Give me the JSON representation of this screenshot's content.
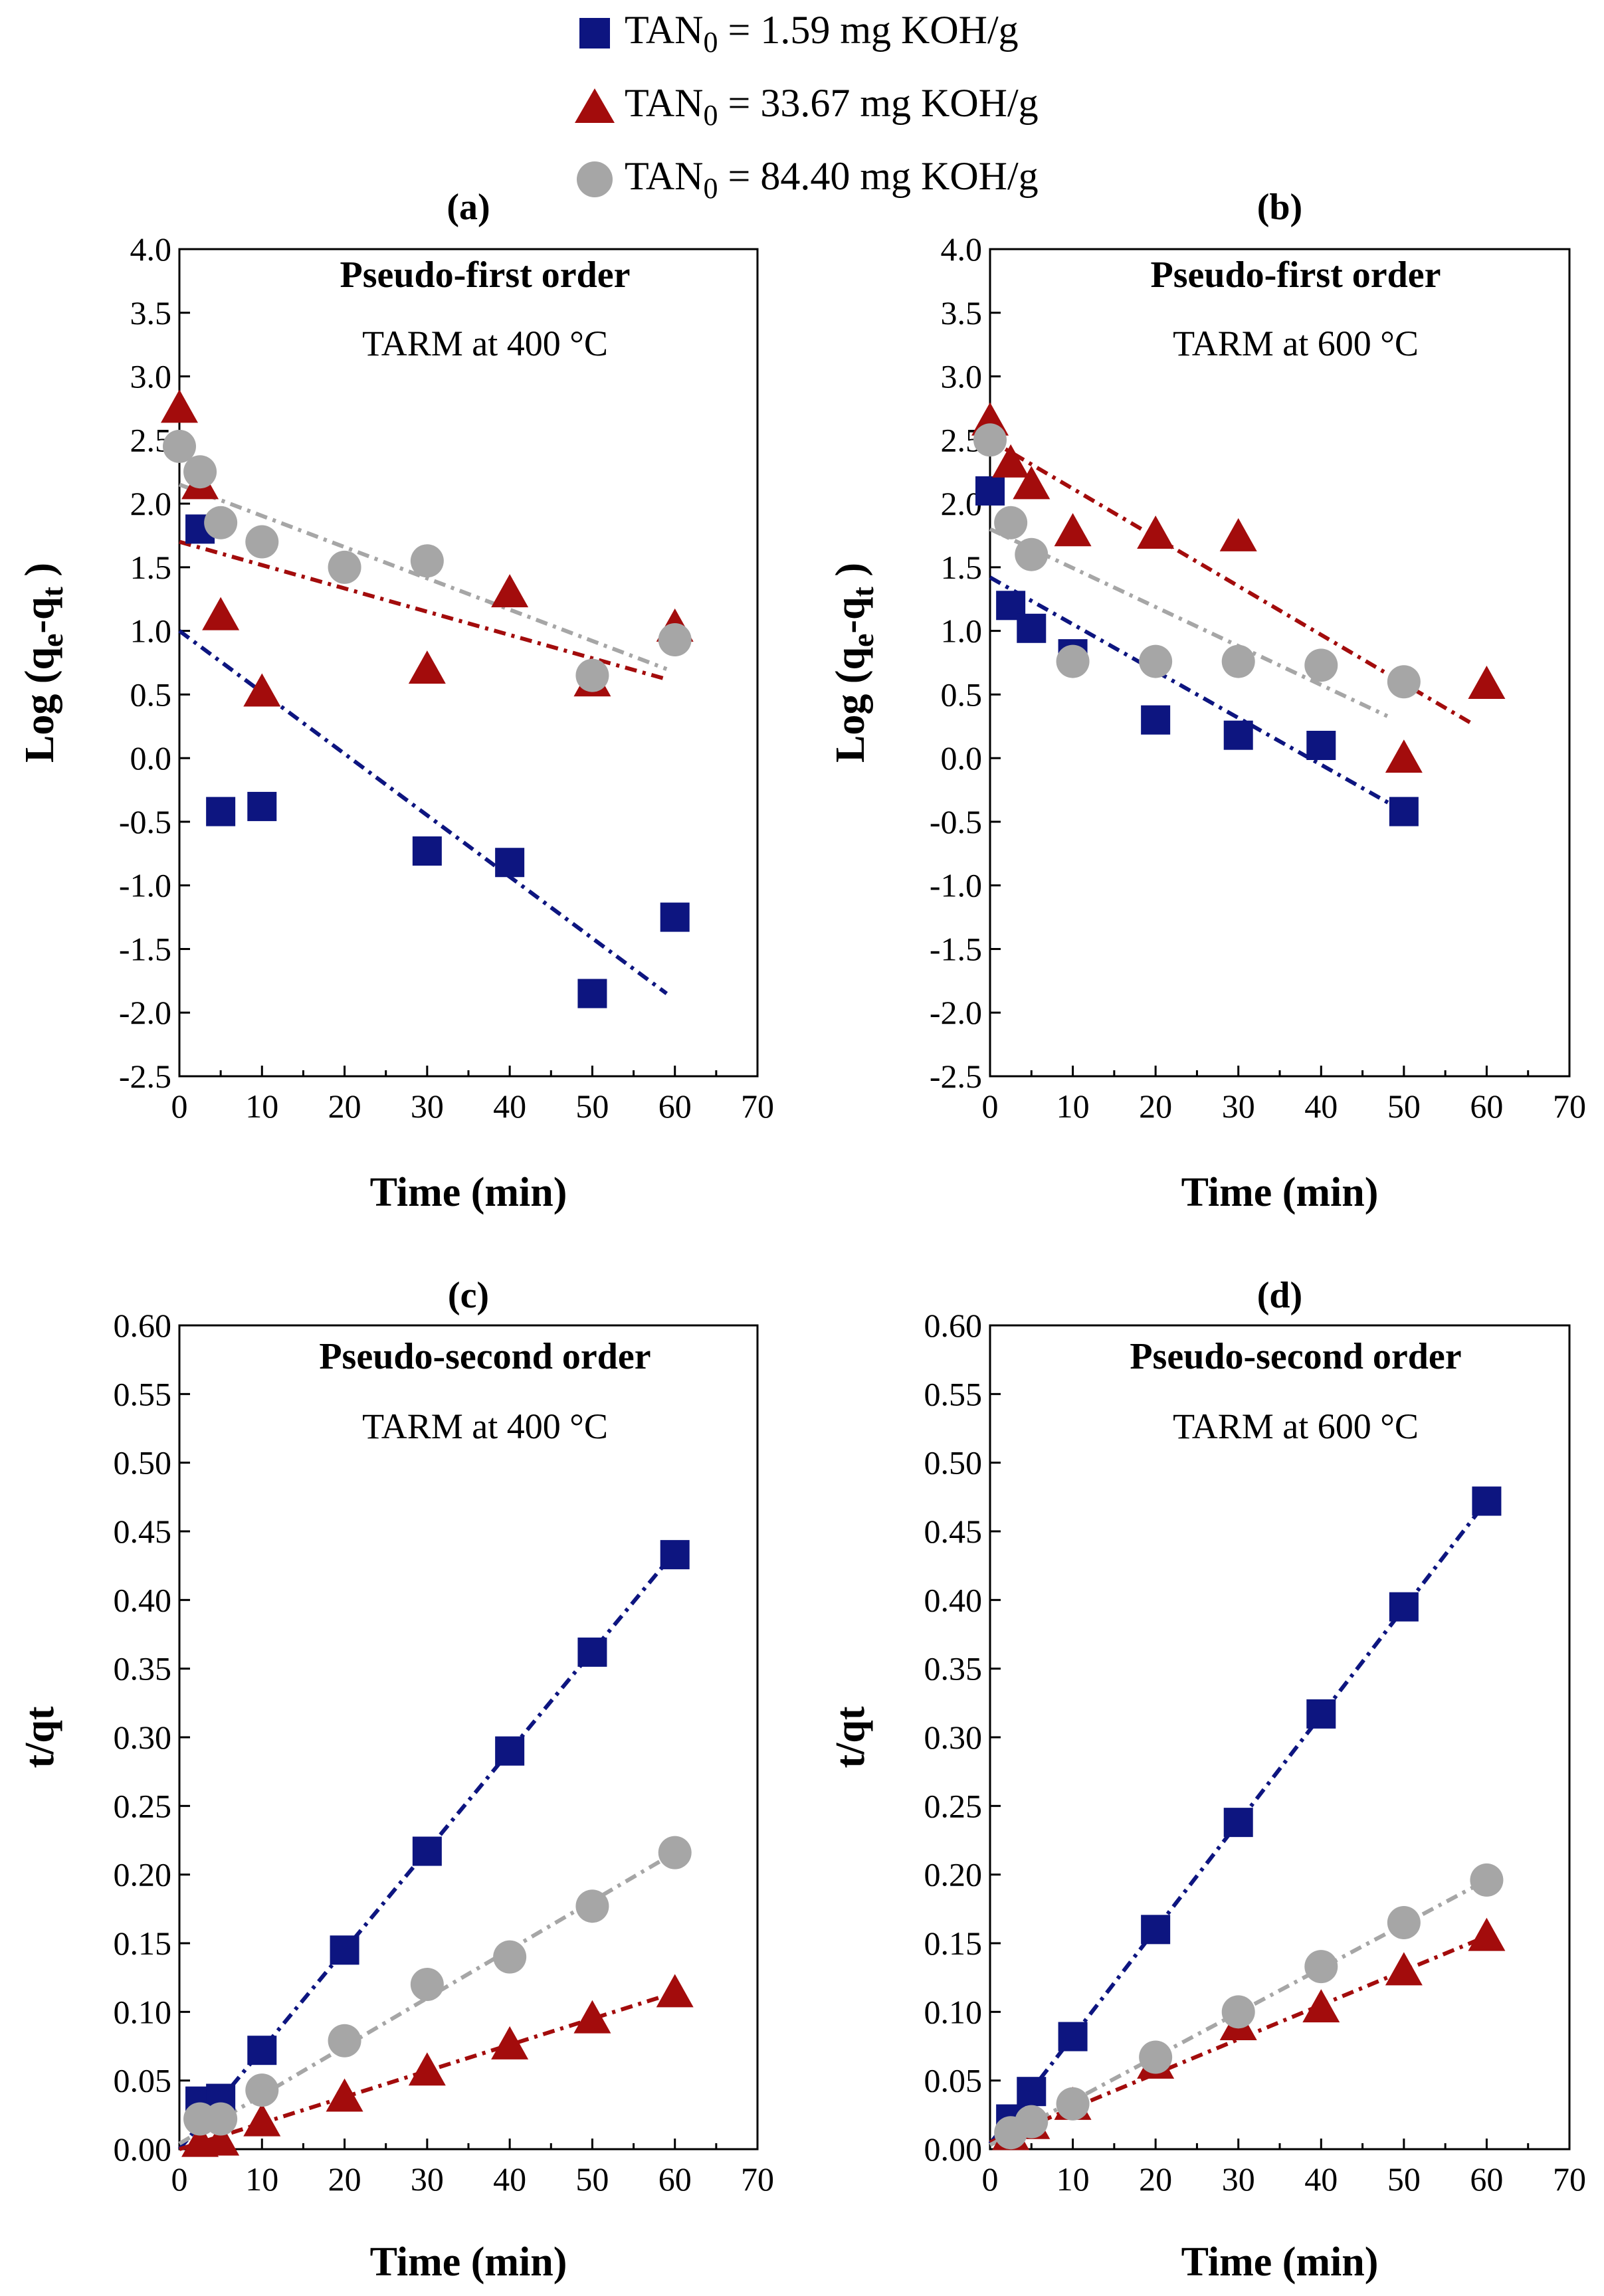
{
  "legend": {
    "entries": [
      {
        "name": "TAN0 = 1.59 mg KOH/g",
        "prefix": "TAN",
        "sub": "0",
        "suffix": " = 1.59 mg KOH/g",
        "marker": "square",
        "color": "#0d1580"
      },
      {
        "name": "TAN0 = 33.67 mg KOH/g",
        "prefix": "TAN",
        "sub": "0",
        "suffix": " = 33.67 mg KOH/g",
        "marker": "triangle",
        "color": "#a30c0c"
      },
      {
        "name": "TAN0 = 84.40 mg KOH/g",
        "prefix": "TAN",
        "sub": "0",
        "suffix": " = 84.40 mg KOH/g",
        "marker": "circle",
        "color": "#a6a6a6"
      }
    ]
  },
  "chart_data": [
    {
      "panel": "(a)",
      "type": "scatter",
      "title": "Pseudo-first order",
      "subtitle": "TARM at 400 °C",
      "xlabel": "Time (min)",
      "ylabel": "Log (q",
      "ylabel_sub1": "e",
      "ylabel_mid": "-q",
      "ylabel_sub2": "t",
      "ylabel_end": " )",
      "xlim": [
        0,
        70
      ],
      "ylim": [
        -2.5,
        4.0
      ],
      "xticks": [
        "0",
        "10",
        "20",
        "30",
        "40",
        "50",
        "60",
        "70"
      ],
      "yticks": [
        "-2.5",
        "-2.0",
        "-1.5",
        "-1.0",
        "-0.5",
        "0.0",
        "0.5",
        "1.0",
        "1.5",
        "2.0",
        "2.5",
        "3.0",
        "3.5",
        "4.0"
      ],
      "series": [
        {
          "name": "TAN0 = 1.59 mg KOH/g",
          "color": "#0d1580",
          "marker": "square",
          "x": [
            2.5,
            5,
            10,
            30,
            40,
            50,
            60
          ],
          "y": [
            1.8,
            -0.42,
            -0.38,
            -0.73,
            -0.82,
            -1.85,
            -1.25
          ],
          "fit": {
            "x": [
              0,
              59
            ],
            "y": [
              1.0,
              -1.85
            ]
          }
        },
        {
          "name": "TAN0 = 33.67 mg KOH/g",
          "color": "#a30c0c",
          "marker": "triangle",
          "x": [
            0,
            2.5,
            5,
            10,
            30,
            40,
            50,
            60
          ],
          "y": [
            2.75,
            2.15,
            1.12,
            0.52,
            0.7,
            1.3,
            0.6,
            1.03
          ],
          "fit": {
            "x": [
              0,
              59
            ],
            "y": [
              1.7,
              0.62
            ]
          }
        },
        {
          "name": "TAN0 = 84.40 mg KOH/g",
          "color": "#a6a6a6",
          "marker": "circle",
          "x": [
            0,
            2.5,
            5,
            10,
            20,
            30,
            50,
            60
          ],
          "y": [
            2.45,
            2.25,
            1.85,
            1.7,
            1.5,
            1.55,
            0.65,
            0.93
          ],
          "fit": {
            "x": [
              0,
              59
            ],
            "y": [
              2.15,
              0.7
            ]
          }
        }
      ]
    },
    {
      "panel": "(b)",
      "type": "scatter",
      "title": "Pseudo-first order",
      "subtitle": "TARM at 600 °C",
      "xlabel": "Time (min)",
      "ylabel": "Log (q",
      "ylabel_sub1": "e",
      "ylabel_mid": "-q",
      "ylabel_sub2": "t",
      "ylabel_end": " )",
      "xlim": [
        0,
        70
      ],
      "ylim": [
        -2.5,
        4.0
      ],
      "xticks": [
        "0",
        "10",
        "20",
        "30",
        "40",
        "50",
        "60",
        "70"
      ],
      "yticks": [
        "-2.5",
        "-2.0",
        "-1.5",
        "-1.0",
        "-0.5",
        "0.0",
        "0.5",
        "1.0",
        "1.5",
        "2.0",
        "2.5",
        "3.0",
        "3.5",
        "4.0"
      ],
      "series": [
        {
          "name": "TAN0 = 1.59 mg KOH/g",
          "color": "#0d1580",
          "marker": "square",
          "x": [
            0,
            2.5,
            5,
            10,
            20,
            30,
            40,
            50
          ],
          "y": [
            2.1,
            1.2,
            1.02,
            0.82,
            0.3,
            0.18,
            0.1,
            -0.42
          ],
          "fit": {
            "x": [
              0,
              50
            ],
            "y": [
              1.42,
              -0.42
            ]
          }
        },
        {
          "name": "TAN0 = 33.67 mg KOH/g",
          "color": "#a30c0c",
          "marker": "triangle",
          "x": [
            0,
            2.5,
            5,
            10,
            20,
            30,
            50,
            60
          ],
          "y": [
            2.65,
            2.32,
            2.15,
            1.78,
            1.76,
            1.74,
            0.0,
            0.58
          ],
          "fit": {
            "x": [
              0,
              58
            ],
            "y": [
              2.5,
              0.28
            ]
          }
        },
        {
          "name": "TAN0 = 84.40 mg KOH/g",
          "color": "#a6a6a6",
          "marker": "circle",
          "x": [
            0,
            2.5,
            5,
            10,
            20,
            30,
            40,
            50
          ],
          "y": [
            2.5,
            1.85,
            1.6,
            0.76,
            0.76,
            0.76,
            0.73,
            0.6
          ],
          "fit": {
            "x": [
              0,
              48
            ],
            "y": [
              1.8,
              0.33
            ]
          }
        }
      ]
    },
    {
      "panel": "(c)",
      "type": "scatter",
      "title": "Pseudo-second order",
      "subtitle": "TARM at 400 °C",
      "xlabel": "Time (min)",
      "ylabel": "t/qt",
      "xlim": [
        0,
        70
      ],
      "ylim": [
        0.0,
        0.6
      ],
      "xticks": [
        "0",
        "10",
        "20",
        "30",
        "40",
        "50",
        "60",
        "70"
      ],
      "yticks": [
        "0.00",
        "0.05",
        "0.10",
        "0.15",
        "0.20",
        "0.25",
        "0.30",
        "0.35",
        "0.40",
        "0.45",
        "0.50",
        "0.55",
        "0.60"
      ],
      "series": [
        {
          "name": "TAN0 = 1.59 mg KOH/g",
          "color": "#0d1580",
          "marker": "square",
          "x": [
            2.5,
            5,
            10,
            20,
            30,
            40,
            50,
            60
          ],
          "y": [
            0.035,
            0.037,
            0.072,
            0.145,
            0.217,
            0.29,
            0.362,
            0.433
          ],
          "fit": {
            "x": [
              0,
              60
            ],
            "y": [
              0.0,
              0.435
            ]
          }
        },
        {
          "name": "TAN0 = 33.67 mg KOH/g",
          "color": "#a30c0c",
          "marker": "triangle",
          "x": [
            2.5,
            5,
            10,
            20,
            30,
            40,
            50,
            60
          ],
          "y": [
            0.005,
            0.006,
            0.02,
            0.038,
            0.057,
            0.076,
            0.095,
            0.114
          ],
          "fit": {
            "x": [
              0,
              60
            ],
            "y": [
              0.0,
              0.114
            ]
          }
        },
        {
          "name": "TAN0 = 84.40 mg KOH/g",
          "color": "#a6a6a6",
          "marker": "circle",
          "x": [
            2.5,
            5,
            10,
            20,
            30,
            40,
            50,
            60
          ],
          "y": [
            0.022,
            0.022,
            0.043,
            0.079,
            0.12,
            0.14,
            0.177,
            0.216
          ],
          "fit": {
            "x": [
              0,
              60
            ],
            "y": [
              0.004,
              0.216
            ]
          }
        }
      ]
    },
    {
      "panel": "(d)",
      "type": "scatter",
      "title": "Pseudo-second order",
      "subtitle": "TARM at 600 °C",
      "xlabel": "Time (min)",
      "ylabel": "t/qt",
      "xlim": [
        0,
        70
      ],
      "ylim": [
        0.0,
        0.6
      ],
      "xticks": [
        "0",
        "10",
        "20",
        "30",
        "40",
        "50",
        "60",
        "70"
      ],
      "yticks": [
        "0.00",
        "0.05",
        "0.10",
        "0.15",
        "0.20",
        "0.25",
        "0.30",
        "0.35",
        "0.40",
        "0.45",
        "0.50",
        "0.55",
        "0.60"
      ],
      "series": [
        {
          "name": "TAN0 = 1.59 mg KOH/g",
          "color": "#0d1580",
          "marker": "square",
          "x": [
            2.5,
            5,
            10,
            20,
            30,
            40,
            50,
            60
          ],
          "y": [
            0.022,
            0.042,
            0.082,
            0.16,
            0.238,
            0.317,
            0.395,
            0.472
          ],
          "fit": {
            "x": [
              0,
              60
            ],
            "y": [
              0.004,
              0.472
            ]
          }
        },
        {
          "name": "TAN0 = 33.67 mg KOH/g",
          "color": "#a30c0c",
          "marker": "triangle",
          "x": [
            2.5,
            5,
            10,
            20,
            30,
            40,
            50,
            60
          ],
          "y": [
            0.01,
            0.018,
            0.032,
            0.062,
            0.09,
            0.103,
            0.13,
            0.155
          ],
          "fit": {
            "x": [
              0,
              60
            ],
            "y": [
              0.005,
              0.155
            ]
          }
        },
        {
          "name": "TAN0 = 84.40 mg KOH/g",
          "color": "#a6a6a6",
          "marker": "circle",
          "x": [
            2.5,
            5,
            10,
            20,
            30,
            40,
            50,
            60
          ],
          "y": [
            0.012,
            0.02,
            0.033,
            0.067,
            0.1,
            0.133,
            0.165,
            0.196
          ],
          "fit": {
            "x": [
              0,
              60
            ],
            "y": [
              0.003,
              0.196
            ]
          }
        }
      ]
    }
  ]
}
